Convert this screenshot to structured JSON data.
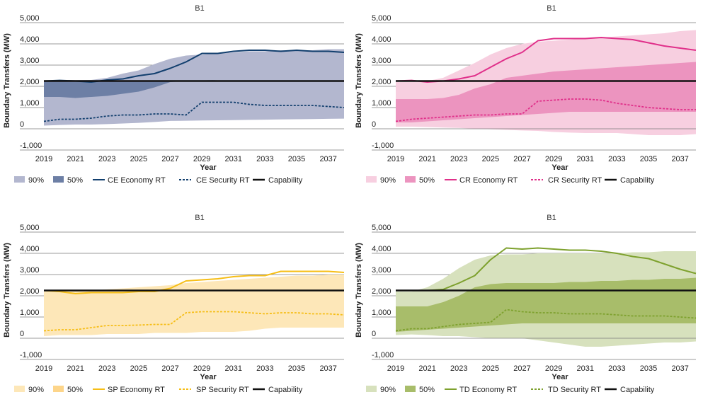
{
  "colors": {
    "CE": {
      "band90": "#b3b7cf",
      "band50": "#6d7fa5",
      "line": "#123f6e"
    },
    "CR": {
      "band90": "#f7cfe0",
      "band50": "#ec94bf",
      "line": "#e0308a"
    },
    "SP": {
      "band90": "#fde7b8",
      "band50": "#fdd58a",
      "line": "#f6be17"
    },
    "TD": {
      "band90": "#d7e1bd",
      "band50": "#a8bd6a",
      "line": "#7ea12e"
    },
    "capability": "#111111"
  },
  "chart_data": [
    {
      "type": "area",
      "title": "B1",
      "xlabel": "Year",
      "ylabel": "Boundary Transfers (MW)",
      "xlim": [
        2019,
        2038
      ],
      "ylim": [
        -1000,
        5000
      ],
      "yticks": [
        "-1,000",
        "0",
        "1,000",
        "2,000",
        "3,000",
        "4,000",
        "5,000"
      ],
      "xticks": [
        "2019",
        "2021",
        "2023",
        "2025",
        "2027",
        "2029",
        "2031",
        "2033",
        "2035",
        "2037"
      ],
      "legend": [
        "90%",
        "50%",
        "CE Economy RT",
        "CE Security RT",
        "Capability"
      ],
      "x": [
        2019,
        2020,
        2021,
        2022,
        2023,
        2024,
        2025,
        2026,
        2027,
        2028,
        2029,
        2030,
        2031,
        2032,
        2033,
        2034,
        2035,
        2036,
        2037,
        2038
      ],
      "p05": [
        150,
        180,
        200,
        200,
        220,
        250,
        280,
        320,
        370,
        380,
        390,
        400,
        410,
        420,
        430,
        440,
        450,
        460,
        470,
        480
      ],
      "p25": [
        1500,
        1500,
        1450,
        1500,
        1550,
        1650,
        1750,
        1950,
        2200,
        2250,
        2280,
        2300,
        2300,
        2300,
        2300,
        2300,
        2300,
        2300,
        2300,
        2300
      ],
      "p75": [
        2250,
        2250,
        2250,
        2250,
        2250,
        2250,
        2250,
        2250,
        2250,
        2250,
        2250,
        2300,
        2300,
        2300,
        2300,
        2300,
        2300,
        2300,
        2300,
        2300
      ],
      "p95": [
        2200,
        2300,
        2300,
        2300,
        2400,
        2600,
        2750,
        3050,
        3300,
        3450,
        3500,
        3550,
        3600,
        3650,
        3650,
        3700,
        3700,
        3700,
        3750,
        3750
      ],
      "economy": [
        2250,
        2280,
        2250,
        2200,
        2300,
        2350,
        2500,
        2600,
        2850,
        3150,
        3550,
        3550,
        3650,
        3700,
        3700,
        3650,
        3700,
        3650,
        3650,
        3600
      ],
      "security": [
        350,
        450,
        450,
        500,
        600,
        650,
        650,
        700,
        700,
        650,
        1250,
        1250,
        1250,
        1150,
        1100,
        1100,
        1100,
        1100,
        1050,
        1000
      ],
      "capability": 2250
    },
    {
      "type": "area",
      "title": "B1",
      "xlabel": "Year",
      "ylabel": "Boundary Transfers (MW)",
      "xlim": [
        2019,
        2038
      ],
      "ylim": [
        -1000,
        5000
      ],
      "yticks": [
        "-1,000",
        "0",
        "1,000",
        "2,000",
        "3,000",
        "4,000",
        "5,000"
      ],
      "xticks": [
        "2019",
        "2021",
        "2023",
        "2025",
        "2027",
        "2029",
        "2031",
        "2033",
        "2035",
        "2037"
      ],
      "legend": [
        "90%",
        "50%",
        "CR Economy RT",
        "CR Security RT",
        "Capability"
      ],
      "x": [
        2019,
        2020,
        2021,
        2022,
        2023,
        2024,
        2025,
        2026,
        2027,
        2028,
        2029,
        2030,
        2031,
        2032,
        2033,
        2034,
        2035,
        2036,
        2037,
        2038
      ],
      "p05": [
        100,
        100,
        80,
        60,
        40,
        0,
        -20,
        -50,
        -80,
        -100,
        -150,
        -180,
        -200,
        -200,
        -200,
        -250,
        -300,
        -300,
        -300,
        -250
      ],
      "p25": [
        1400,
        1400,
        1400,
        1450,
        1600,
        1900,
        2100,
        2400,
        2500,
        2600,
        2700,
        2750,
        2800,
        2850,
        2900,
        2950,
        3000,
        3050,
        3100,
        3150
      ],
      "p75": [
        300,
        300,
        350,
        400,
        450,
        500,
        550,
        600,
        650,
        700,
        750,
        800,
        800,
        800,
        800,
        800,
        800,
        800,
        800,
        800
      ],
      "p95": [
        2200,
        2200,
        2250,
        2400,
        2750,
        3100,
        3500,
        3800,
        4000,
        4100,
        4150,
        4200,
        4250,
        4300,
        4350,
        4400,
        4450,
        4500,
        4600,
        4650
      ],
      "economy": [
        2250,
        2280,
        2200,
        2250,
        2350,
        2500,
        2900,
        3300,
        3600,
        4150,
        4250,
        4250,
        4250,
        4300,
        4250,
        4200,
        4050,
        3900,
        3800,
        3700
      ],
      "security": [
        350,
        450,
        500,
        550,
        600,
        650,
        650,
        700,
        700,
        1300,
        1350,
        1400,
        1400,
        1350,
        1200,
        1100,
        1000,
        950,
        900,
        900
      ],
      "capability": 2250
    },
    {
      "type": "area",
      "title": "B1",
      "xlabel": "Year",
      "ylabel": "Boundary Transfers (MW)",
      "xlim": [
        2019,
        2038
      ],
      "ylim": [
        -1000,
        5000
      ],
      "yticks": [
        "-1,000",
        "0",
        "1,000",
        "2,000",
        "3,000",
        "4,000",
        "5,000"
      ],
      "xticks": [
        "2019",
        "2021",
        "2023",
        "2025",
        "2027",
        "2029",
        "2031",
        "2033",
        "2035",
        "2037"
      ],
      "legend": [
        "90%",
        "50%",
        "SP Economy RT",
        "SP Security RT",
        "Capability"
      ],
      "x": [
        2019,
        2020,
        2021,
        2022,
        2023,
        2024,
        2025,
        2026,
        2027,
        2028,
        2029,
        2030,
        2031,
        2032,
        2033,
        2034,
        2035,
        2036,
        2037,
        2038
      ],
      "p05": [
        100,
        150,
        150,
        150,
        200,
        200,
        200,
        250,
        250,
        250,
        300,
        300,
        300,
        350,
        450,
        500,
        500,
        500,
        500,
        500
      ],
      "p25": [
        1500,
        1500,
        1500,
        1500,
        1500,
        1550,
        1600,
        1700,
        1600,
        1700,
        1700,
        1700,
        1750,
        1800,
        1850,
        1900,
        1900,
        1900,
        1900,
        1900
      ],
      "p75": [
        1500,
        1500,
        1500,
        1500,
        1500,
        1550,
        1600,
        1700,
        1600,
        1700,
        1700,
        1700,
        1750,
        1800,
        1850,
        1900,
        1900,
        1900,
        1900,
        1900
      ],
      "p95": [
        2200,
        2250,
        2250,
        2250,
        2300,
        2350,
        2400,
        2450,
        2500,
        2600,
        2650,
        2700,
        2750,
        2800,
        2850,
        2900,
        2950,
        2950,
        3000,
        3000
      ],
      "economy": [
        2250,
        2200,
        2100,
        2150,
        2150,
        2150,
        2200,
        2200,
        2350,
        2700,
        2750,
        2800,
        2900,
        2950,
        2950,
        3150,
        3150,
        3150,
        3150,
        3100
      ],
      "security": [
        350,
        400,
        400,
        500,
        600,
        600,
        620,
        650,
        650,
        1200,
        1250,
        1250,
        1250,
        1200,
        1150,
        1200,
        1200,
        1150,
        1150,
        1100
      ],
      "capability": 2250
    },
    {
      "type": "area",
      "title": "B1",
      "xlabel": "Year",
      "ylabel": "Boundary Transfers (MW)",
      "xlim": [
        2019,
        2038
      ],
      "ylim": [
        -1000,
        5000
      ],
      "yticks": [
        "-1,000",
        "0",
        "1,000",
        "2,000",
        "3,000",
        "4,000",
        "5,000"
      ],
      "xticks": [
        "2019",
        "2021",
        "2023",
        "2025",
        "2027",
        "2029",
        "2031",
        "2033",
        "2035",
        "2037"
      ],
      "legend": [
        "90%",
        "50%",
        "TD Economy RT",
        "TD Security RT",
        "Capability"
      ],
      "x": [
        2019,
        2020,
        2021,
        2022,
        2023,
        2024,
        2025,
        2026,
        2027,
        2028,
        2029,
        2030,
        2031,
        2032,
        2033,
        2034,
        2035,
        2036,
        2037,
        2038
      ],
      "p05": [
        150,
        180,
        150,
        100,
        100,
        50,
        0,
        0,
        0,
        -100,
        -200,
        -300,
        -400,
        -400,
        -350,
        -300,
        -250,
        -200,
        -200,
        -150
      ],
      "p25": [
        1500,
        1500,
        1500,
        1700,
        2000,
        2400,
        2550,
        2600,
        2600,
        2600,
        2600,
        2650,
        2650,
        2700,
        2700,
        2750,
        2750,
        2800,
        2800,
        2850
      ],
      "p75": [
        300,
        350,
        400,
        450,
        500,
        550,
        600,
        650,
        700,
        700,
        700,
        700,
        700,
        700,
        700,
        700,
        700,
        700,
        700,
        700
      ],
      "p95": [
        2200,
        2200,
        2400,
        2800,
        3300,
        3700,
        3900,
        3950,
        3950,
        4000,
        4000,
        4000,
        4000,
        4000,
        4000,
        4050,
        4050,
        4100,
        4100,
        4100
      ],
      "economy": [
        2250,
        2250,
        2250,
        2300,
        2600,
        2950,
        3700,
        4250,
        4200,
        4250,
        4200,
        4150,
        4150,
        4100,
        4000,
        3850,
        3750,
        3500,
        3250,
        3050
      ],
      "security": [
        350,
        450,
        450,
        550,
        650,
        700,
        750,
        1350,
        1250,
        1200,
        1200,
        1150,
        1150,
        1150,
        1100,
        1050,
        1050,
        1050,
        1000,
        950
      ],
      "capability": 2250
    }
  ]
}
